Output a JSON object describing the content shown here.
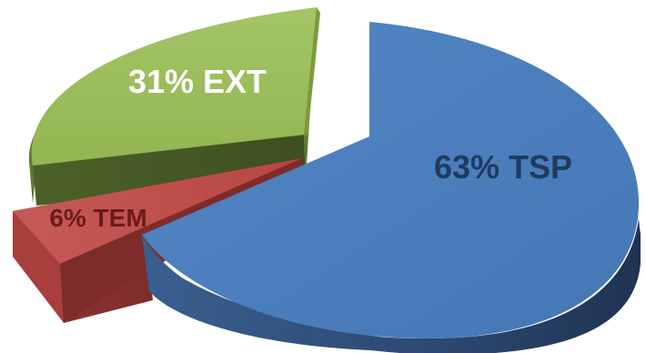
{
  "chart_data": {
    "type": "pie",
    "style": "3d-exploded",
    "slices": [
      {
        "name": "TSP",
        "value": 63,
        "label": "63% TSP",
        "color": "#4f81bd",
        "label_color": "#1f3b5f"
      },
      {
        "name": "EXT",
        "value": 31,
        "label": "31% EXT",
        "color": "#9bbb59",
        "label_color": "#ffffff"
      },
      {
        "name": "TEM",
        "value": 6,
        "label": "6% TEM",
        "color": "#c0504d",
        "label_color": "#6b1b1b"
      }
    ],
    "title": "",
    "legend": "none"
  }
}
